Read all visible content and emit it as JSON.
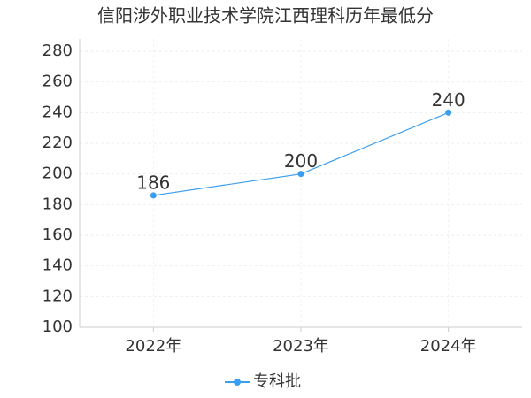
{
  "chart_data": {
    "type": "line",
    "title": "信阳涉外职业技术学院江西理科历年最低分",
    "categories": [
      "2022年",
      "2023年",
      "2024年"
    ],
    "series": [
      {
        "name": "专科批",
        "color": "#3a9ef0",
        "values": [
          186,
          200,
          240
        ]
      }
    ],
    "ylim": [
      100,
      280
    ],
    "yticks": [
      100,
      120,
      140,
      160,
      180,
      200,
      220,
      240,
      260,
      280
    ],
    "grid": true,
    "legend": "bottom"
  }
}
